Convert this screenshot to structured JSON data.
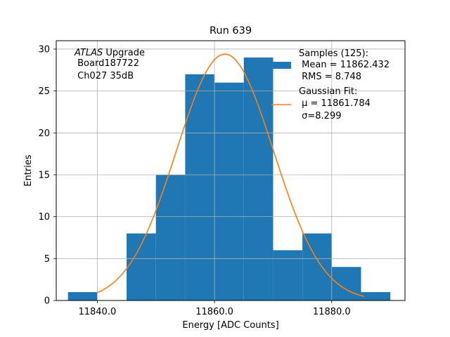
{
  "chart_data": {
    "type": "bar",
    "title": "Run 639",
    "xlabel": "Energy [ADC Counts]",
    "ylabel": "Entries",
    "xlim": [
      11833.0,
      11892.5
    ],
    "ylim": [
      0,
      31
    ],
    "grid": true,
    "xticks": [
      11840.0,
      11860.0,
      11880.0
    ],
    "xtick_labels": [
      "11840.0",
      "11860.0",
      "11880.0"
    ],
    "yticks": [
      0,
      5,
      10,
      15,
      20,
      25,
      30
    ],
    "ytick_labels": [
      "0",
      "5",
      "10",
      "15",
      "20",
      "25",
      "30"
    ],
    "bin_edges": [
      11835,
      11840,
      11845,
      11850,
      11855,
      11860,
      11865,
      11870,
      11875,
      11880,
      11885,
      11890
    ],
    "values": [
      1,
      0,
      8,
      15,
      27,
      26,
      29,
      6,
      8,
      4,
      1
    ],
    "bar_color": "#1f77b4",
    "fit": {
      "type": "gaussian",
      "mu": 11861.784,
      "sigma": 8.299,
      "amplitude": 29.4,
      "x_range": [
        11840,
        11885.5
      ],
      "color": "#ff7f0e"
    },
    "annotation": {
      "line1_italic": "ATLAS",
      "line1_rest": " Upgrade",
      "line2": " Board187722",
      "line3": " Ch027 35dB"
    },
    "legend": {
      "placement": "top-right",
      "samples": {
        "line1": "Samples (125):",
        "line2": " Mean = 11862.432",
        "line3": " RMS = 8.748"
      },
      "fit": {
        "line1": "Gaussian Fit:",
        "line2": " μ = 11861.784",
        "line3": " σ=8.299"
      }
    }
  }
}
